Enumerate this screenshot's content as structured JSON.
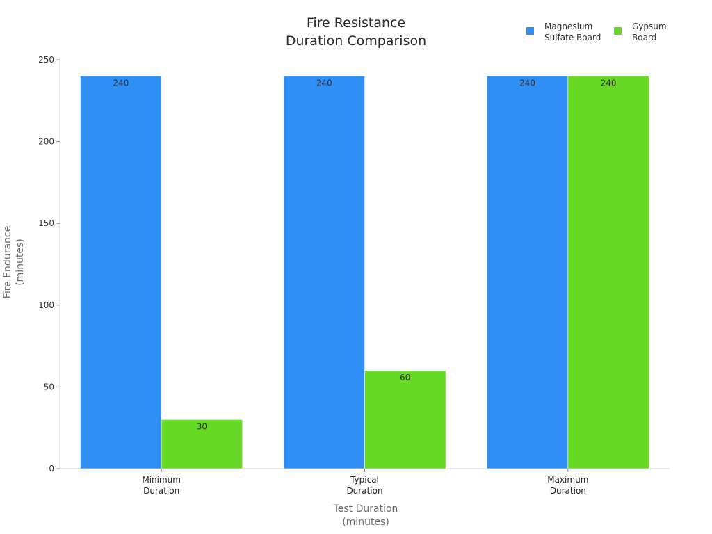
{
  "chart_data": {
    "type": "bar",
    "title": "Fire Resistance Duration Comparison",
    "title_lines": [
      "Fire Resistance",
      "Duration Comparison"
    ],
    "xlabel": "Test Duration (minutes)",
    "xlabel_lines": [
      "Test Duration",
      "(minutes)"
    ],
    "ylabel": "Fire Endurance (minutes)",
    "ylabel_lines": [
      "Fire Endurance",
      "(minutes)"
    ],
    "categories": [
      "Minimum Duration",
      "Typical Duration",
      "Maximum Duration"
    ],
    "category_lines": [
      [
        "Minimum",
        "Duration"
      ],
      [
        "Typical",
        "Duration"
      ],
      [
        "Maximum",
        "Duration"
      ]
    ],
    "series": [
      {
        "name": "Magnesium Sulfate Board",
        "name_lines": [
          "Magnesium",
          "Sulfate Board"
        ],
        "color": "#2f8ff5",
        "values": [
          240,
          240,
          240
        ]
      },
      {
        "name": "Gypsum Board",
        "name_lines": [
          "Gypsum",
          "Board"
        ],
        "color": "#66d925",
        "values": [
          30,
          60,
          240
        ]
      }
    ],
    "ylim": [
      0,
      250
    ],
    "yticks": [
      0,
      50,
      100,
      150,
      200,
      250
    ],
    "grid": false,
    "legend_position": "top-right",
    "data_labels": true
  }
}
